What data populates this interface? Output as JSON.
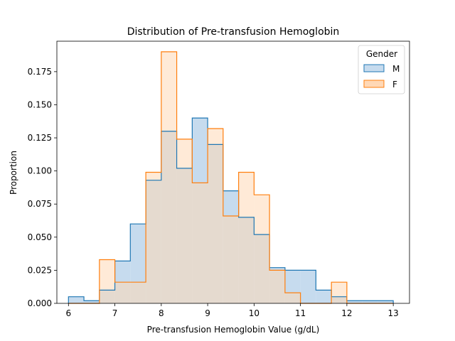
{
  "chart_data": {
    "type": "histogram",
    "title": "Distribution of Pre-transfusion Hemoglobin",
    "xlabel": "Pre-transfusion Hemoglobin Value (g/dL)",
    "ylabel": "Proportion",
    "xlim": [
      5.75,
      13.35
    ],
    "ylim": [
      0,
      0.198
    ],
    "xticks": [
      6,
      7,
      8,
      9,
      10,
      11,
      12,
      13
    ],
    "yticks": [
      0.0,
      0.025,
      0.05,
      0.075,
      0.1,
      0.125,
      0.15,
      0.175
    ],
    "ytick_labels": [
      "0.000",
      "0.025",
      "0.050",
      "0.075",
      "0.100",
      "0.125",
      "0.150",
      "0.175"
    ],
    "legend": {
      "title": "Gender",
      "position": "top-right"
    },
    "bin_edges": [
      6.0,
      6.333,
      6.667,
      7.0,
      7.333,
      7.667,
      8.0,
      8.333,
      8.667,
      9.0,
      9.333,
      9.667,
      10.0,
      10.333,
      10.667,
      11.0,
      11.333,
      11.667,
      12.0,
      12.333,
      12.667,
      13.0
    ],
    "series": [
      {
        "name": "M",
        "color": "#1f77b4",
        "fill": "#c6dbee",
        "values": [
          0.005,
          0.002,
          0.01,
          0.032,
          0.06,
          0.093,
          0.13,
          0.102,
          0.14,
          0.12,
          0.085,
          0.065,
          0.052,
          0.027,
          0.025,
          0.025,
          0.01,
          0.005,
          0.002,
          0.002,
          0.002
        ]
      },
      {
        "name": "F",
        "color": "#ff7f0e",
        "fill": "#ffd8b6",
        "values": [
          0.0,
          0.0,
          0.033,
          0.016,
          0.016,
          0.099,
          0.19,
          0.124,
          0.091,
          0.132,
          0.066,
          0.099,
          0.082,
          0.025,
          0.008,
          0.0,
          0.0,
          0.016,
          0.0,
          0.0,
          0.0
        ]
      }
    ]
  }
}
